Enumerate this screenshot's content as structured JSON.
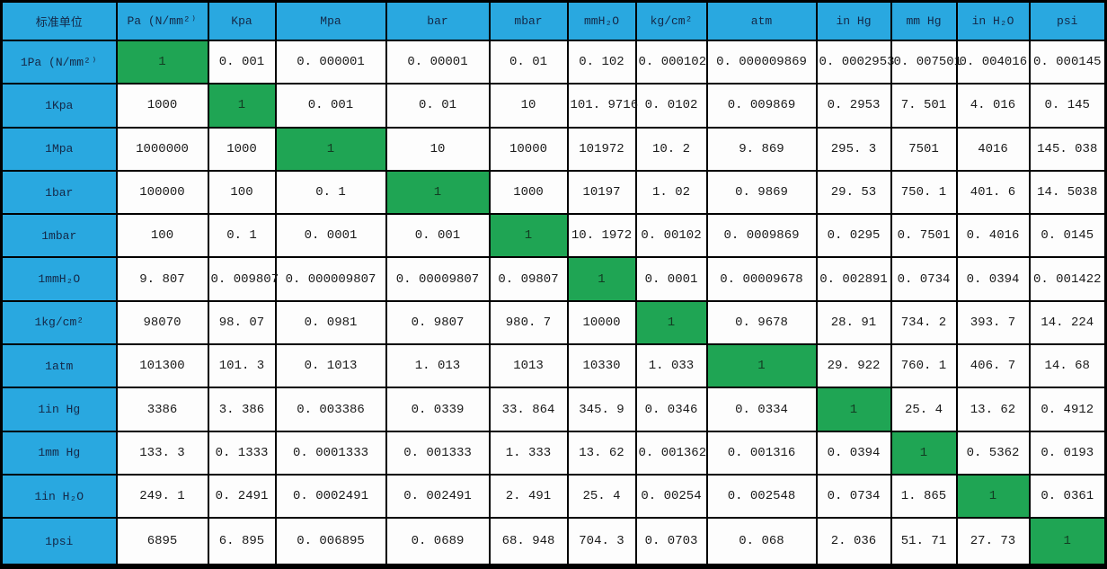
{
  "colors": {
    "header_bg": "#29a8e0",
    "diagonal_bg": "#1fa554",
    "grid": "#000000",
    "cell_bg": "#fdfdfd",
    "header_text": "#142847",
    "value_text": "#1a1a1a"
  },
  "table": {
    "corner_header": "标准单位",
    "column_headers": [
      "Pa (N/mm²⁾",
      "Kpa",
      "Mpa",
      "bar",
      "mbar",
      "mmH₂O",
      "kg/cm²",
      "atm",
      "in Hg",
      "mm Hg",
      "in H₂O",
      "psi"
    ],
    "rows": [
      {
        "label": "1Pa (N/mm²⁾",
        "values": [
          "1",
          "0. 001",
          "0. 000001",
          "0. 00001",
          "0. 01",
          "0. 102",
          "0. 000102",
          "0. 000009869",
          "0. 0002953",
          "0. 007501",
          "0. 004016",
          "0. 000145"
        ]
      },
      {
        "label": "1Kpa",
        "values": [
          "1000",
          "1",
          "0. 001",
          "0. 01",
          "10",
          "101. 9716",
          "0. 0102",
          "0. 009869",
          "0. 2953",
          "7. 501",
          "4. 016",
          "0. 145"
        ]
      },
      {
        "label": "1Mpa",
        "values": [
          "1000000",
          "1000",
          "1",
          "10",
          "10000",
          "101972",
          "10. 2",
          "9. 869",
          "295. 3",
          "7501",
          "4016",
          "145. 038"
        ]
      },
      {
        "label": "1bar",
        "values": [
          "100000",
          "100",
          "0. 1",
          "1",
          "1000",
          "10197",
          "1. 02",
          "0. 9869",
          "29. 53",
          "750. 1",
          "401. 6",
          "14. 5038"
        ]
      },
      {
        "label": "1mbar",
        "values": [
          "100",
          "0. 1",
          "0. 0001",
          "0. 001",
          "1",
          "10. 1972",
          "0. 00102",
          "0. 0009869",
          "0. 0295",
          "0. 7501",
          "0. 4016",
          "0. 0145"
        ]
      },
      {
        "label": "1mmH₂O",
        "values": [
          "9. 807",
          "0. 009807",
          "0. 000009807",
          "0. 00009807",
          "0. 09807",
          "1",
          "0. 0001",
          "0. 00009678",
          "0. 002891",
          "0. 0734",
          "0. 0394",
          "0. 001422"
        ]
      },
      {
        "label": "1kg/cm²",
        "values": [
          "98070",
          "98. 07",
          "0. 0981",
          "0. 9807",
          "980. 7",
          "10000",
          "1",
          "0. 9678",
          "28. 91",
          "734. 2",
          "393. 7",
          "14. 224"
        ]
      },
      {
        "label": "1atm",
        "values": [
          "101300",
          "101. 3",
          "0. 1013",
          "1. 013",
          "1013",
          "10330",
          "1. 033",
          "1",
          "29. 922",
          "760. 1",
          "406. 7",
          "14. 68"
        ]
      },
      {
        "label": "1in Hg",
        "values": [
          "3386",
          "3. 386",
          "0. 003386",
          "0. 0339",
          "33. 864",
          "345. 9",
          "0. 0346",
          "0. 0334",
          "1",
          "25. 4",
          "13. 62",
          "0. 4912"
        ]
      },
      {
        "label": "1mm Hg",
        "values": [
          "133. 3",
          "0. 1333",
          "0. 0001333",
          "0. 001333",
          "1. 333",
          "13. 62",
          "0. 001362",
          "0. 001316",
          "0. 0394",
          "1",
          "0. 5362",
          "0. 0193"
        ]
      },
      {
        "label": "1in H₂O",
        "values": [
          "249. 1",
          "0. 2491",
          "0. 0002491",
          "0. 002491",
          "2. 491",
          "25. 4",
          "0. 00254",
          "0. 002548",
          "0. 0734",
          "1. 865",
          "1",
          "0. 0361"
        ]
      },
      {
        "label": "1psi",
        "values": [
          "6895",
          "6. 895",
          "0. 006895",
          "0. 0689",
          "68. 948",
          "704. 3",
          "0. 0703",
          "0. 068",
          "2. 036",
          "51. 71",
          "27. 73",
          "1"
        ]
      }
    ]
  }
}
